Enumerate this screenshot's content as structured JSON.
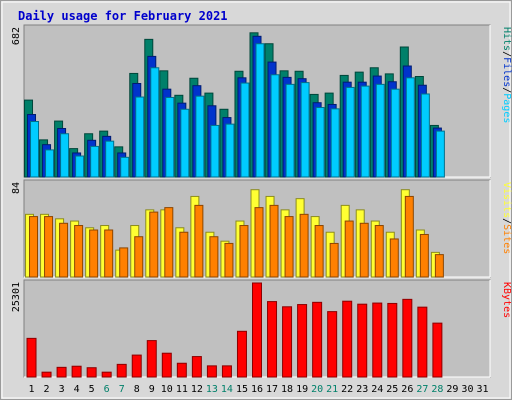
{
  "colors": {
    "panel_bg": "#c0c0c0",
    "frame_bg": "#d8d8d8",
    "hits": "#00806a",
    "files": "#0033cc",
    "pages": "#00ccff",
    "visits": "#ffff33",
    "sites": "#ff8000",
    "kbytes": "#ff0000",
    "weekend_label": "#00806a",
    "weekday_label": "#000000",
    "title": "#0000cc",
    "slash": "#000000"
  },
  "chart_data": {
    "type": "bar",
    "title": "Daily usage for February 2021",
    "days": [
      "1",
      "2",
      "3",
      "4",
      "5",
      "6",
      "7",
      "8",
      "9",
      "10",
      "11",
      "12",
      "13",
      "14",
      "15",
      "16",
      "17",
      "18",
      "19",
      "20",
      "21",
      "22",
      "23",
      "24",
      "25",
      "26",
      "27",
      "28",
      "29",
      "30",
      "31"
    ],
    "weekend_days": [
      6,
      7,
      13,
      14,
      20,
      21,
      27,
      28
    ],
    "panels": [
      {
        "name": "hits-files-pages",
        "ymax": 682,
        "ymax_label": "682",
        "right_labels": [
          {
            "text": "Hits",
            "color": "#00806a"
          },
          {
            "text": "/",
            "color": "#000000"
          },
          {
            "text": "Files",
            "color": "#0033cc"
          },
          {
            "text": "/",
            "color": "#000000"
          },
          {
            "text": "Pages",
            "color": "#00ccff"
          }
        ],
        "series": [
          {
            "name": "Hits",
            "color": "#00806a",
            "values": [
              352,
              170,
              256,
              130,
              198,
              210,
              138,
              474,
              630,
              486,
              374,
              452,
              384,
              310,
              484,
              660,
              610,
              486,
              484,
              378,
              384,
              465,
              480,
              500,
              472,
              595,
              460,
              236,
              0,
              0,
              0
            ]
          },
          {
            "name": "Files",
            "color": "#0033cc",
            "values": [
              286,
              148,
              222,
              110,
              168,
              186,
              110,
              428,
              552,
              402,
              338,
              418,
              326,
              272,
              454,
              644,
              526,
              456,
              450,
              340,
              332,
              434,
              434,
              462,
              436,
              508,
              420,
              224,
              0,
              0,
              0
            ]
          },
          {
            "name": "Pages",
            "color": "#00ccff",
            "values": [
              254,
              124,
              198,
              96,
              140,
              164,
              90,
              366,
              500,
              364,
              310,
              370,
              236,
              242,
              430,
              610,
              468,
              424,
              432,
              318,
              312,
              410,
              416,
              424,
              402,
              454,
              380,
              210,
              0,
              0,
              0
            ]
          }
        ]
      },
      {
        "name": "visits-sites",
        "ymax": 84,
        "ymax_label": "84",
        "right_labels": [
          {
            "text": "Visits",
            "color": "#ffff33"
          },
          {
            "text": "/",
            "color": "#000000"
          },
          {
            "text": "Sites",
            "color": "#ff8000"
          }
        ],
        "series": [
          {
            "name": "Visits",
            "color": "#ffff33",
            "values": [
              56,
              56,
              52,
              50,
              44,
              46,
              24,
              46,
              60,
              60,
              44,
              72,
              40,
              32,
              50,
              78,
              72,
              60,
              70,
              54,
              40,
              64,
              60,
              50,
              40,
              78,
              42,
              22,
              0,
              0,
              0
            ]
          },
          {
            "name": "Sites",
            "color": "#ff8000",
            "values": [
              54,
              54,
              48,
              46,
              42,
              42,
              26,
              36,
              58,
              62,
              40,
              64,
              36,
              30,
              46,
              62,
              64,
              54,
              56,
              46,
              30,
              50,
              48,
              46,
              34,
              72,
              38,
              20,
              0,
              0,
              0
            ]
          }
        ]
      },
      {
        "name": "kbytes",
        "ymax": 25301,
        "ymax_label": "25301",
        "right_labels": [
          {
            "text": "KBytes",
            "color": "#ff0000"
          }
        ],
        "series": [
          {
            "name": "KBytes",
            "color": "#ff0000",
            "values": [
              10400,
              1300,
              2600,
              2900,
              2500,
              1300,
              3400,
              5900,
              9800,
              6400,
              3700,
              5500,
              3000,
              3000,
              12300,
              25301,
              20300,
              18900,
              19500,
              20100,
              17600,
              20400,
              19600,
              19900,
              19800,
              20900,
              18800,
              14500,
              0,
              0,
              0
            ]
          }
        ]
      }
    ]
  }
}
